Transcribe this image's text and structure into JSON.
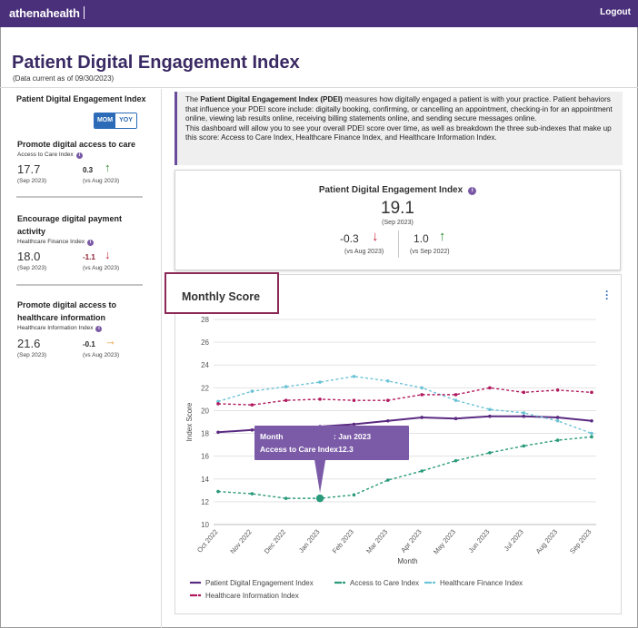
{
  "header": {
    "brand": "athenahealth",
    "logout_label": "Logout"
  },
  "page": {
    "title": "Patient Digital Engagement Index",
    "data_current": "(Data current as of 09/30/2023)"
  },
  "sidebar": {
    "title": "Patient Digital Engagement Index",
    "toggle": {
      "mom_label": "MOM",
      "yoy_label": "YOY",
      "selected": "MOM"
    },
    "cards": [
      {
        "heading": "Promote digital access to care",
        "sub": "Access to Care Index",
        "value": "17.7",
        "period": "(Sep 2023)",
        "change": "0.3",
        "vs": "(vs Aug 2023)",
        "arrow": "↑",
        "arrow_color": "#2e8a2e",
        "change_color": "#222"
      },
      {
        "heading": "Encourage digital payment activity",
        "sub": "Healthcare Finance Index",
        "value": "18.0",
        "period": "(Sep 2023)",
        "change": "-1.1",
        "vs": "(vs Aug 2023)",
        "arrow": "↓",
        "arrow_color": "#c0273b",
        "change_color": "#8b1a2b"
      },
      {
        "heading": "Promote digital access to healthcare information",
        "sub": "Healthcare Information Index",
        "value": "21.6",
        "period": "(Sep 2023)",
        "change": "-0.1",
        "vs": "(vs Aug 2023)",
        "arrow": "→",
        "arrow_color": "#e8a23a",
        "change_color": "#222"
      }
    ]
  },
  "description": {
    "p1_pre": "The ",
    "p1_bold": "Patient Digital Engagement Index (PDEI)",
    "p1_post": " measures how digitally engaged a patient is with your practice. Patient behaviors that influence your PDEI score include: digitally booking, confirming, or cancelling an appointment, checking-in for an appointment online, viewing lab results online, receiving billing statements online, and sending secure messages online.",
    "p2": "This dashboard will allow you to see your overall PDEI score over time, as well as breakdown the three sub-indexes that make up this score: Access to Care Index, Healthcare Finance Index, and Healthcare Information Index."
  },
  "score": {
    "title": "Patient Digital Engagement Index",
    "value": "19.1",
    "period": "(Sep 2023)",
    "mom_change": "-0.3",
    "mom_vs": "(vs Aug 2023)",
    "mom_arrow": "↓",
    "yoy_change": "1.0",
    "yoy_vs": "(vs Sep 2022)",
    "yoy_arrow": "↑",
    "down_color": "#c0273b",
    "up_color": "#2e8a2e"
  },
  "chart_panel": {
    "title": "Monthly Score"
  },
  "tooltip": {
    "month_label": "Month",
    "month_value": ": Jan 2023",
    "series_label": "Access to Care Index",
    "series_value": ": 12.3"
  },
  "chart_data": {
    "type": "line",
    "xlabel": "Month",
    "ylabel": "Index Score",
    "ylim": [
      10,
      28
    ],
    "yticks": [
      10,
      12,
      14,
      16,
      18,
      20,
      22,
      24,
      26,
      28
    ],
    "categories": [
      "Oct 2022",
      "Nov 2022",
      "Dec 2022",
      "Jan 2023",
      "Feb 2023",
      "Mar 2023",
      "Apr 2023",
      "May 2023",
      "Jun 2023",
      "Jul 2023",
      "Aug 2023",
      "Sep 2023"
    ],
    "grid": true,
    "legend": "bottom",
    "series": [
      {
        "name": "Patient Digital Engagement Index",
        "color": "#5a2a82",
        "dash": "solid",
        "values": [
          18.1,
          18.3,
          18.4,
          18.6,
          18.8,
          19.1,
          19.4,
          19.3,
          19.5,
          19.5,
          19.4,
          19.1
        ]
      },
      {
        "name": "Access to Care Index",
        "color": "#2a9a7a",
        "dash": "dashed",
        "values": [
          12.9,
          12.7,
          12.3,
          12.3,
          12.6,
          13.9,
          14.7,
          15.6,
          16.3,
          16.9,
          17.4,
          17.7
        ]
      },
      {
        "name": "Healthcare Finance Index",
        "color": "#6cc3d6",
        "dash": "dashed",
        "values": [
          20.8,
          21.7,
          22.1,
          22.5,
          23.0,
          22.6,
          22.0,
          20.9,
          20.1,
          19.8,
          19.1,
          18.0
        ]
      },
      {
        "name": "Healthcare Information Index",
        "color": "#b0195d",
        "dash": "dashed",
        "values": [
          20.6,
          20.5,
          20.9,
          21.0,
          20.9,
          20.9,
          21.4,
          21.4,
          22.0,
          21.6,
          21.8,
          21.6
        ]
      }
    ],
    "highlight": {
      "series": 1,
      "index": 3
    }
  }
}
